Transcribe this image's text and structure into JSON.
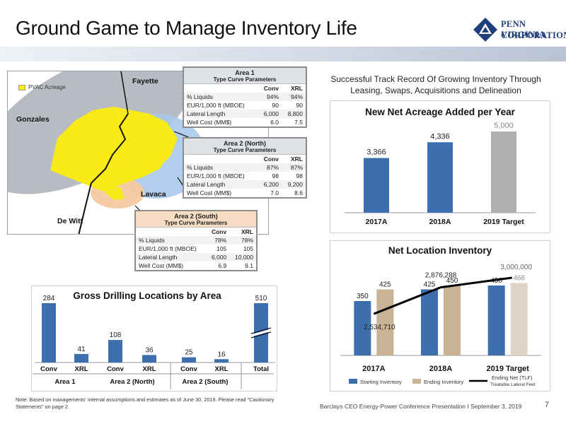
{
  "title": "Ground Game to Manage Inventory Life",
  "logo": {
    "line1": "Penn Virginia",
    "line2": "Corporation"
  },
  "map": {
    "legend": "PVAC Acreage",
    "counties": {
      "fayette": "Fayette",
      "gonzales": "Gonzales",
      "lavaca": "Lavaca",
      "dewitt": "De Witt"
    }
  },
  "type_curves": {
    "area1": {
      "title": "Area 1",
      "subtitle": "Type Curve Parameters",
      "cols": [
        "Conv",
        "XRL"
      ],
      "rows": [
        {
          "label": "% Liquids",
          "conv": "94%",
          "xrl": "94%"
        },
        {
          "label": "EUR/1,000 ft (MBOE)",
          "conv": "90",
          "xrl": "90"
        },
        {
          "label": "Lateral Length",
          "conv": "6,000",
          "xrl": "8,800"
        },
        {
          "label": "Well Cost (MM$)",
          "conv": "6.0",
          "xrl": "7.5"
        }
      ]
    },
    "area2n": {
      "title": "Area 2 (North)",
      "subtitle": "Type Curve Parameters",
      "cols": [
        "Conv",
        "XRL"
      ],
      "rows": [
        {
          "label": "% Liquids",
          "conv": "87%",
          "xrl": "87%"
        },
        {
          "label": "EUR/1,000 ft (MBOE)",
          "conv": "98",
          "xrl": "98"
        },
        {
          "label": "Lateral Length",
          "conv": "6,200",
          "xrl": "9,200"
        },
        {
          "label": "Well Cost (MM$)",
          "conv": "7.0",
          "xrl": "8.6"
        }
      ]
    },
    "area2s": {
      "title": "Area 2 (South)",
      "subtitle": "Type Curve Parameters",
      "cols": [
        "Conv",
        "XRL"
      ],
      "rows": [
        {
          "label": "% Liquids",
          "conv": "78%",
          "xrl": "78%"
        },
        {
          "label": "EUR/1,000 ft (MBOE)",
          "conv": "105",
          "xrl": "105"
        },
        {
          "label": "Lateral Length",
          "conv": "6,000",
          "xrl": "10,000"
        },
        {
          "label": "Well Cost (MM$)",
          "conv": "6.9",
          "xrl": "9.1"
        }
      ]
    }
  },
  "subtitle_right": "Successful Track Record Of Growing Inventory Through Leasing, Swaps, Acquisitions and Delineation",
  "colors": {
    "blue": "#3d6ead",
    "tan": "#c8b394",
    "gray": "#b0b0b0",
    "line": "#000000",
    "light_tan": "#ddd3c7"
  },
  "chart_data": [
    {
      "id": "gross_locations",
      "type": "bar",
      "title": "Gross Drilling Locations by Area",
      "categories": [
        "Conv",
        "XRL",
        "Conv",
        "XRL",
        "Conv",
        "XRL",
        "Total"
      ],
      "groups": [
        {
          "label": "Area 1",
          "span": [
            0,
            1
          ]
        },
        {
          "label": "Area 2 (North)",
          "span": [
            2,
            3
          ]
        },
        {
          "label": "Area 2 (South)",
          "span": [
            4,
            5
          ]
        }
      ],
      "values": [
        284,
        41,
        108,
        36,
        25,
        16,
        510
      ],
      "axis_break_on": "Total"
    },
    {
      "id": "net_acreage",
      "type": "bar",
      "title": "New Net Acreage Added per Year",
      "categories": [
        "2017A",
        "2018A",
        "2019 Target"
      ],
      "values": [
        3366,
        4336,
        5000
      ],
      "value_labels": [
        "3,366",
        "4,336",
        "5,000"
      ],
      "ylim": [
        0,
        6000
      ]
    },
    {
      "id": "net_location_inventory",
      "type": "bar",
      "title": "Net Location Inventory",
      "categories": [
        "2017A",
        "2018A",
        "2019 Target"
      ],
      "series": [
        {
          "name": "Starting Inventory",
          "values": [
            350,
            425,
            450
          ],
          "labels": [
            "350",
            "425",
            "450"
          ]
        },
        {
          "name": "Ending Inventory",
          "values": [
            425,
            450,
            466
          ],
          "labels": [
            "425",
            "450",
            "466"
          ]
        }
      ],
      "line_series": {
        "name": "Ending Net (TLF)",
        "sublabel": "Treatable Lateral Feet",
        "values": [
          2534710,
          2876288,
          3000000
        ],
        "labels": [
          "2,534,710",
          "2,876,288",
          "3,000,000"
        ]
      },
      "ylim": [
        0,
        600
      ]
    }
  ],
  "footnote": "Note: Based on managements' internal assumptions and estimates as of June 30, 2019. Please read \"Cautionary Statements\" on page 2.",
  "footer": "Barclays CEO Energy-Power Conference Presentation I September 3, 2019",
  "page_number": "7"
}
